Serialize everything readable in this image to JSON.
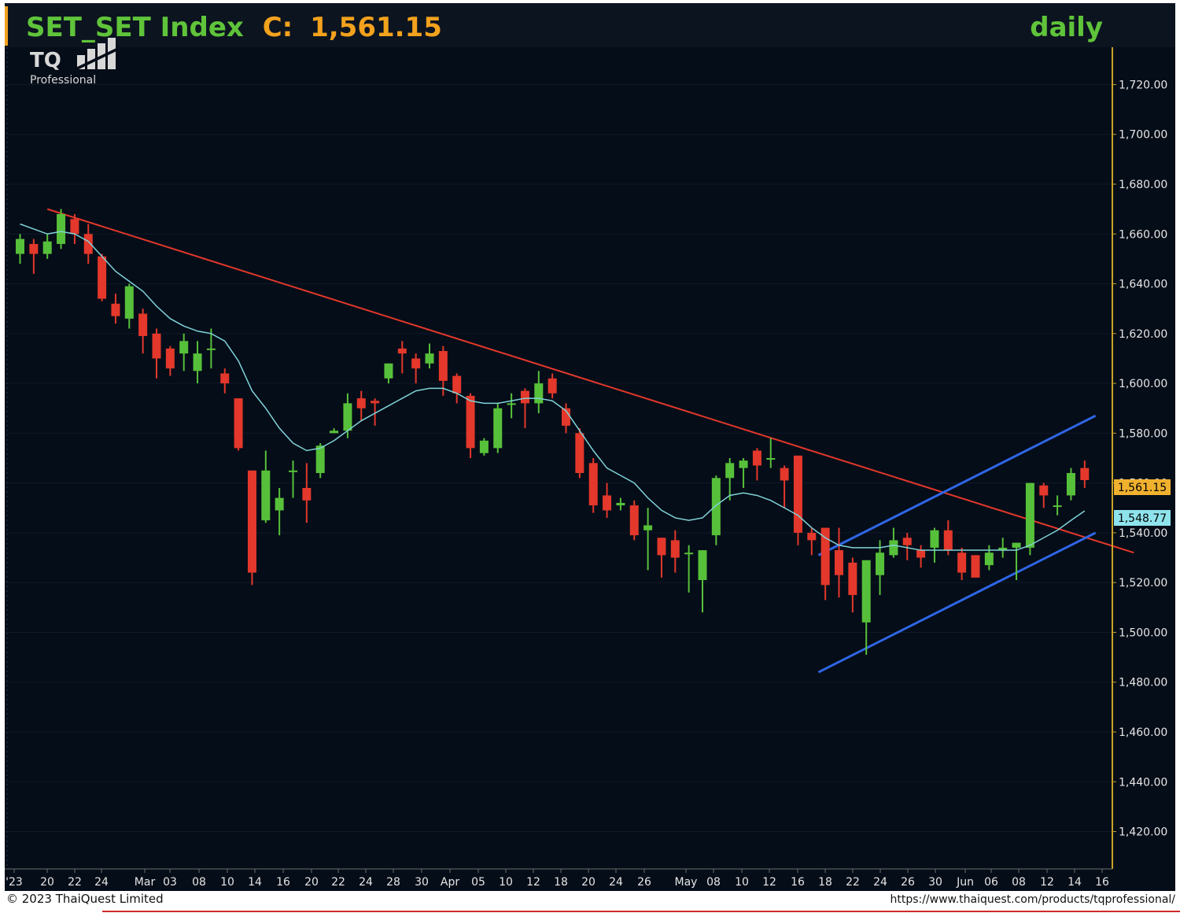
{
  "header": {
    "title_symbol": "SET_SET Index",
    "title_close_label": "C:",
    "title_close_value": "1,561.15",
    "timeframe": "daily"
  },
  "logo": {
    "mark": "TQ",
    "subtitle": "Professional"
  },
  "footer": {
    "copyright": "© 2023 ThaiQuest Limited",
    "url": "https://www.thaiquest.com/products/tqprofessional/"
  },
  "price_tags": {
    "last_close": "1,561.15",
    "ma_value": "1,548.77"
  },
  "colors": {
    "background": "#050d18",
    "up_candle": "#57c03a",
    "down_candle": "#e3382b",
    "ma_line": "#7fd3d8",
    "resistance_line": "#e3382b",
    "channel_line": "#2f66e6",
    "title_green": "#5fc43a",
    "title_orange": "#f3a21d",
    "last_tag": "#f0b12e",
    "ma_tag": "#8fe4ec"
  },
  "chart_data": {
    "type": "candlestick",
    "title": "SET_SET Index C: 1,561.15",
    "timeframe": "daily",
    "ylim": [
      1405,
      1735
    ],
    "y_ticks": [
      "1,720.00",
      "1,700.00",
      "1,680.00",
      "1,660.00",
      "1,640.00",
      "1,620.00",
      "1,600.00",
      "1,580.00",
      "1,560.00",
      "1,540.00",
      "1,520.00",
      "1,500.00",
      "1,480.00",
      "1,460.00",
      "1,440.00",
      "1,420.00"
    ],
    "x_ticks": [
      "'23",
      "20",
      "22",
      "24",
      "Mar",
      "03",
      "08",
      "10",
      "14",
      "16",
      "20",
      "22",
      "24",
      "28",
      "30",
      "Apr",
      "05",
      "10",
      "12",
      "18",
      "20",
      "24",
      "26",
      "May",
      "08",
      "10",
      "12",
      "16",
      "18",
      "22",
      "24",
      "26",
      "30",
      "Jun",
      "06",
      "08",
      "12",
      "14",
      "16"
    ],
    "candles": [
      {
        "o": 1652,
        "h": 1660,
        "l": 1648,
        "c": 1658
      },
      {
        "o": 1656,
        "h": 1658,
        "l": 1644,
        "c": 1652
      },
      {
        "o": 1652,
        "h": 1660,
        "l": 1650,
        "c": 1657
      },
      {
        "o": 1656,
        "h": 1670,
        "l": 1654,
        "c": 1668
      },
      {
        "o": 1666,
        "h": 1668,
        "l": 1656,
        "c": 1660
      },
      {
        "o": 1660,
        "h": 1664,
        "l": 1648,
        "c": 1652
      },
      {
        "o": 1651,
        "h": 1652,
        "l": 1633,
        "c": 1634
      },
      {
        "o": 1632,
        "h": 1636,
        "l": 1624,
        "c": 1627
      },
      {
        "o": 1626,
        "h": 1640,
        "l": 1622,
        "c": 1639
      },
      {
        "o": 1628,
        "h": 1630,
        "l": 1612,
        "c": 1619
      },
      {
        "o": 1620,
        "h": 1622,
        "l": 1602,
        "c": 1610
      },
      {
        "o": 1614,
        "h": 1615,
        "l": 1603,
        "c": 1606
      },
      {
        "o": 1612,
        "h": 1620,
        "l": 1605,
        "c": 1617
      },
      {
        "o": 1605,
        "h": 1617,
        "l": 1600,
        "c": 1612
      },
      {
        "o": 1614,
        "h": 1622,
        "l": 1606,
        "c": 1614
      },
      {
        "o": 1604,
        "h": 1606,
        "l": 1596,
        "c": 1600
      },
      {
        "o": 1594,
        "h": 1594,
        "l": 1573,
        "c": 1574
      },
      {
        "o": 1565,
        "h": 1565,
        "l": 1519,
        "c": 1524
      },
      {
        "o": 1545,
        "h": 1573,
        "l": 1544,
        "c": 1565
      },
      {
        "o": 1549,
        "h": 1558,
        "l": 1539,
        "c": 1554
      },
      {
        "o": 1565,
        "h": 1569,
        "l": 1554,
        "c": 1565
      },
      {
        "o": 1558,
        "h": 1568,
        "l": 1544,
        "c": 1553
      },
      {
        "o": 1564,
        "h": 1576,
        "l": 1562,
        "c": 1575
      },
      {
        "o": 1580,
        "h": 1582,
        "l": 1580,
        "c": 1581
      },
      {
        "o": 1581,
        "h": 1596,
        "l": 1578,
        "c": 1592
      },
      {
        "o": 1594,
        "h": 1597,
        "l": 1585,
        "c": 1590
      },
      {
        "o": 1593,
        "h": 1594,
        "l": 1583,
        "c": 1592
      },
      {
        "o": 1602,
        "h": 1608,
        "l": 1600,
        "c": 1608
      },
      {
        "o": 1614,
        "h": 1617,
        "l": 1604,
        "c": 1612
      },
      {
        "o": 1610,
        "h": 1612,
        "l": 1600,
        "c": 1606
      },
      {
        "o": 1608,
        "h": 1616,
        "l": 1606,
        "c": 1612
      },
      {
        "o": 1613,
        "h": 1615,
        "l": 1595,
        "c": 1601
      },
      {
        "o": 1603,
        "h": 1604,
        "l": 1592,
        "c": 1596
      },
      {
        "o": 1595,
        "h": 1596,
        "l": 1570,
        "c": 1574
      },
      {
        "o": 1572,
        "h": 1578,
        "l": 1571,
        "c": 1577
      },
      {
        "o": 1574,
        "h": 1592,
        "l": 1572,
        "c": 1590
      },
      {
        "o": 1592,
        "h": 1596,
        "l": 1586,
        "c": 1592
      },
      {
        "o": 1597,
        "h": 1598,
        "l": 1582,
        "c": 1592
      },
      {
        "o": 1592,
        "h": 1605,
        "l": 1588,
        "c": 1600
      },
      {
        "o": 1602,
        "h": 1604,
        "l": 1594,
        "c": 1596
      },
      {
        "o": 1590,
        "h": 1592,
        "l": 1580,
        "c": 1583
      },
      {
        "o": 1580,
        "h": 1582,
        "l": 1562,
        "c": 1564
      },
      {
        "o": 1568,
        "h": 1570,
        "l": 1548,
        "c": 1551
      },
      {
        "o": 1555,
        "h": 1560,
        "l": 1546,
        "c": 1549
      },
      {
        "o": 1551,
        "h": 1554,
        "l": 1549,
        "c": 1552
      },
      {
        "o": 1551,
        "h": 1553,
        "l": 1537,
        "c": 1539
      },
      {
        "o": 1541,
        "h": 1550,
        "l": 1525,
        "c": 1543
      },
      {
        "o": 1538,
        "h": 1538,
        "l": 1522,
        "c": 1531
      },
      {
        "o": 1537,
        "h": 1541,
        "l": 1524,
        "c": 1530
      },
      {
        "o": 1532,
        "h": 1535,
        "l": 1516,
        "c": 1532
      },
      {
        "o": 1521,
        "h": 1533,
        "l": 1508,
        "c": 1533
      },
      {
        "o": 1539,
        "h": 1563,
        "l": 1535,
        "c": 1562
      },
      {
        "o": 1562,
        "h": 1570,
        "l": 1553,
        "c": 1568
      },
      {
        "o": 1566,
        "h": 1570,
        "l": 1558,
        "c": 1569
      },
      {
        "o": 1573,
        "h": 1574,
        "l": 1561,
        "c": 1567
      },
      {
        "o": 1570,
        "h": 1578,
        "l": 1566,
        "c": 1570
      },
      {
        "o": 1566,
        "h": 1567,
        "l": 1550,
        "c": 1561
      },
      {
        "o": 1571,
        "h": 1571,
        "l": 1535,
        "c": 1540
      },
      {
        "o": 1540,
        "h": 1542,
        "l": 1531,
        "c": 1537
      },
      {
        "o": 1542,
        "h": 1542,
        "l": 1513,
        "c": 1519
      },
      {
        "o": 1533,
        "h": 1542,
        "l": 1514,
        "c": 1523
      },
      {
        "o": 1528,
        "h": 1530,
        "l": 1508,
        "c": 1515
      },
      {
        "o": 1504,
        "h": 1528,
        "l": 1491,
        "c": 1529
      },
      {
        "o": 1523,
        "h": 1537,
        "l": 1515,
        "c": 1532
      },
      {
        "o": 1531,
        "h": 1542,
        "l": 1530,
        "c": 1537
      },
      {
        "o": 1538,
        "h": 1540,
        "l": 1529,
        "c": 1535
      },
      {
        "o": 1533,
        "h": 1535,
        "l": 1526,
        "c": 1530
      },
      {
        "o": 1534,
        "h": 1542,
        "l": 1528,
        "c": 1541
      },
      {
        "o": 1541,
        "h": 1545,
        "l": 1531,
        "c": 1533
      },
      {
        "o": 1532,
        "h": 1534,
        "l": 1521,
        "c": 1524
      },
      {
        "o": 1531,
        "h": 1531,
        "l": 1522,
        "c": 1522
      },
      {
        "o": 1527,
        "h": 1535,
        "l": 1525,
        "c": 1532
      },
      {
        "o": 1533,
        "h": 1538,
        "l": 1530,
        "c": 1534
      },
      {
        "o": 1534,
        "h": 1536,
        "l": 1521,
        "c": 1536
      },
      {
        "o": 1534,
        "h": 1560,
        "l": 1531,
        "c": 1560
      },
      {
        "o": 1559,
        "h": 1560,
        "l": 1550,
        "c": 1555
      },
      {
        "o": 1551,
        "h": 1555,
        "l": 1547,
        "c": 1551
      },
      {
        "o": 1555,
        "h": 1566,
        "l": 1553,
        "c": 1564
      },
      {
        "o": 1566,
        "h": 1569,
        "l": 1558,
        "c": 1561.15
      }
    ],
    "moving_average": [
      1664,
      1662,
      1660,
      1661,
      1660,
      1657,
      1651,
      1645,
      1641,
      1637,
      1631,
      1626,
      1623,
      1621,
      1620,
      1617,
      1609,
      1597,
      1590,
      1582,
      1576,
      1573,
      1574,
      1577,
      1581,
      1585,
      1588,
      1591,
      1594,
      1597,
      1598,
      1598,
      1596,
      1593,
      1592,
      1592,
      1593,
      1594,
      1594,
      1593,
      1589,
      1581,
      1573,
      1566,
      1563,
      1560,
      1554,
      1549,
      1546,
      1545,
      1546,
      1551,
      1555,
      1556,
      1555,
      1553,
      1550,
      1547,
      1542,
      1538,
      1535,
      1534,
      1534,
      1534,
      1535,
      1534,
      1533,
      1533,
      1533,
      1533,
      1533,
      1533,
      1533,
      1533,
      1535,
      1538,
      1541,
      1545,
      1548.77
    ],
    "trendlines": [
      {
        "name": "",
        "type": "resistance",
        "from": {
          "bar": 2,
          "price": 1670
        },
        "to": {
          "bar": 81.6,
          "price": 1532
        }
      },
      {
        "name": "",
        "type": "channel_upper",
        "from": {
          "bar": 58.5,
          "price": 1531
        },
        "to": {
          "bar": 78.8,
          "price": 1587
        }
      },
      {
        "name": "",
        "type": "channel_lower",
        "from": {
          "bar": 58.5,
          "price": 1484
        },
        "to": {
          "bar": 78.8,
          "price": 1540
        }
      }
    ]
  }
}
